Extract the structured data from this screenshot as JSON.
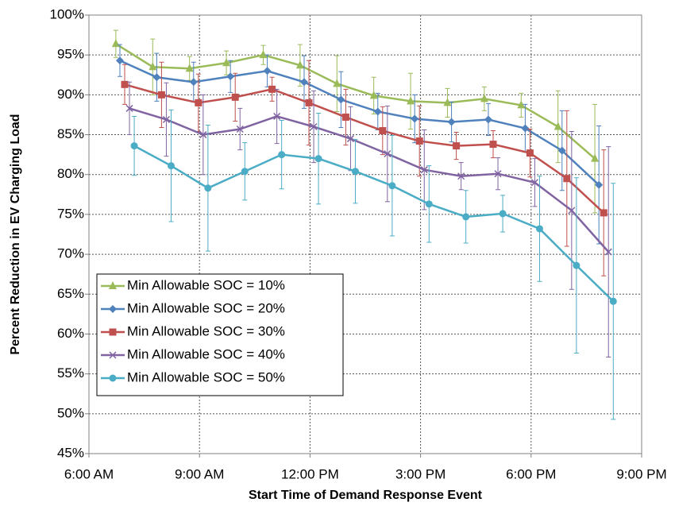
{
  "chart_data": {
    "type": "line",
    "x_label": "Start Time of Demand Response Event",
    "y_label": "Percent Reduction in EV Charging Load",
    "xlim": [
      6,
      21
    ],
    "xticks": [
      {
        "value": 6,
        "label": "6:00 AM"
      },
      {
        "value": 9,
        "label": "9:00 AM"
      },
      {
        "value": 12,
        "label": "12:00 PM"
      },
      {
        "value": 15,
        "label": "3:00 PM"
      },
      {
        "value": 18,
        "label": "6:00 PM"
      },
      {
        "value": 21,
        "label": "9:00 PM"
      }
    ],
    "ylim": [
      45,
      100
    ],
    "yticks": [
      {
        "value": 45,
        "label": "45%"
      },
      {
        "value": 50,
        "label": "50%"
      },
      {
        "value": 55,
        "label": "55%"
      },
      {
        "value": 60,
        "label": "60%"
      },
      {
        "value": 65,
        "label": "65%"
      },
      {
        "value": 70,
        "label": "70%"
      },
      {
        "value": 75,
        "label": "75%"
      },
      {
        "value": 80,
        "label": "80%"
      },
      {
        "value": 85,
        "label": "85%"
      },
      {
        "value": 90,
        "label": "90%"
      },
      {
        "value": 95,
        "label": "95%"
      },
      {
        "value": 100,
        "label": "100%"
      }
    ],
    "grid": true,
    "legend": "lower-left",
    "series": [
      {
        "name": "Min Allowable SOC = 10%",
        "color": "#9bbb59",
        "marker": "triangle",
        "x": [
          6.73,
          7.73,
          8.73,
          9.73,
          10.73,
          11.73,
          12.73,
          13.73,
          14.73,
          15.73,
          16.73,
          17.73,
          18.73,
          19.73
        ],
        "values": [
          96.4,
          93.5,
          93.3,
          94.0,
          95.0,
          93.7,
          91.4,
          89.9,
          89.2,
          89.0,
          89.5,
          88.7,
          86.0,
          82.0
        ],
        "errors": [
          1.7,
          3.5,
          1.5,
          1.5,
          1.2,
          2.6,
          3.5,
          2.3,
          3.5,
          1.8,
          1.5,
          1.5,
          4.5,
          6.8
        ]
      },
      {
        "name": "Min Allowable SOC = 20%",
        "color": "#4f81bd",
        "marker": "diamond",
        "x": [
          6.84,
          7.84,
          8.84,
          9.84,
          10.84,
          11.84,
          12.84,
          13.84,
          14.84,
          15.84,
          16.84,
          17.84,
          18.84,
          19.84
        ],
        "values": [
          94.3,
          92.2,
          91.6,
          92.3,
          93.0,
          91.6,
          89.4,
          87.9,
          87.0,
          86.6,
          86.9,
          85.8,
          83.0,
          78.7
        ],
        "errors": [
          2.0,
          3.0,
          2.5,
          2.0,
          2.0,
          3.3,
          3.5,
          2.3,
          3.0,
          2.5,
          2.0,
          3.0,
          5.0,
          7.4
        ]
      },
      {
        "name": "Min Allowable SOC = 30%",
        "color": "#c0504d",
        "marker": "square",
        "x": [
          6.97,
          7.97,
          8.97,
          9.97,
          10.97,
          11.97,
          12.97,
          13.97,
          14.97,
          15.97,
          16.97,
          17.97,
          18.97,
          19.97
        ],
        "values": [
          91.3,
          90.0,
          89.0,
          89.7,
          90.7,
          89.0,
          87.2,
          85.5,
          84.2,
          83.6,
          83.8,
          82.7,
          79.5,
          75.2
        ],
        "errors": [
          2.5,
          4.1,
          3.6,
          3.0,
          1.5,
          5.3,
          3.5,
          3.0,
          4.4,
          1.7,
          1.7,
          3.0,
          8.5,
          7.9
        ]
      },
      {
        "name": "Min Allowable SOC = 40%",
        "color": "#8064a2",
        "marker": "x",
        "x": [
          7.1,
          8.1,
          9.1,
          10.1,
          11.1,
          12.1,
          13.1,
          14.1,
          15.1,
          16.1,
          17.1,
          18.1,
          19.1,
          20.1
        ],
        "values": [
          88.3,
          86.9,
          85.0,
          85.7,
          87.3,
          86.0,
          84.5,
          82.6,
          80.6,
          79.8,
          80.1,
          79.0,
          75.5,
          70.3
        ],
        "errors": [
          3.3,
          4.6,
          5.0,
          2.6,
          3.4,
          4.5,
          4.0,
          6.0,
          5.0,
          1.7,
          2.0,
          3.0,
          9.9,
          13.2
        ]
      },
      {
        "name": "Min Allowable SOC = 50%",
        "color": "#4bacc6",
        "marker": "circle",
        "x": [
          7.23,
          8.23,
          9.23,
          10.23,
          11.23,
          12.23,
          13.23,
          14.23,
          15.23,
          16.23,
          17.23,
          18.23,
          19.23,
          20.23
        ],
        "values": [
          83.6,
          81.1,
          78.3,
          80.4,
          82.5,
          82.0,
          80.4,
          78.6,
          76.3,
          74.7,
          75.1,
          73.2,
          68.6,
          64.1
        ],
        "errors": [
          3.7,
          7.0,
          7.9,
          3.6,
          4.3,
          5.7,
          4.0,
          6.3,
          4.8,
          3.3,
          2.3,
          6.6,
          11.0,
          14.8
        ]
      }
    ]
  }
}
